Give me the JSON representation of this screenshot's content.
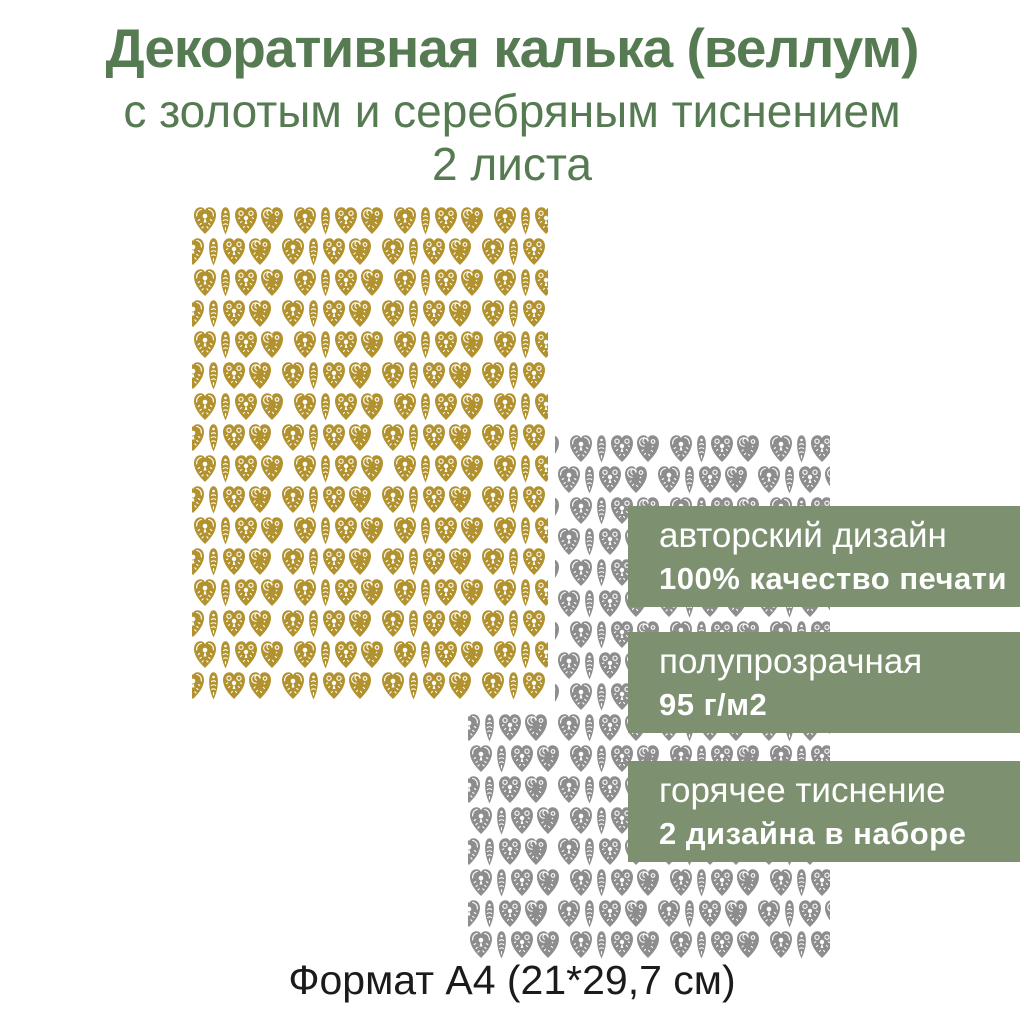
{
  "product_card": {
    "title_line1": "Декоративная калька (веллум)",
    "title_line2": "с золотым и серебряным тиснением",
    "title_line3": "2 листа",
    "caption": "Формат А4 (21*29,7 см)"
  },
  "features": [
    {
      "line1": "авторский дизайн",
      "line2": "100% качество печати"
    },
    {
      "line1": "полупрозрачная",
      "line2": "95 г/м2"
    },
    {
      "line1": "горячее тиснение",
      "line2": "2 дизайна в наборе"
    }
  ],
  "sheets": {
    "gold": {
      "label": "gold-embossed-hearts-sheet",
      "color": "#b2922e"
    },
    "silver": {
      "label": "silver-embossed-hearts-sheet",
      "color": "#8d8d8d"
    }
  },
  "colors": {
    "title_green": "#567a51",
    "banner_green": "#7d9170",
    "banner_text": "#ffffff",
    "caption_text": "#1b1b1b"
  }
}
